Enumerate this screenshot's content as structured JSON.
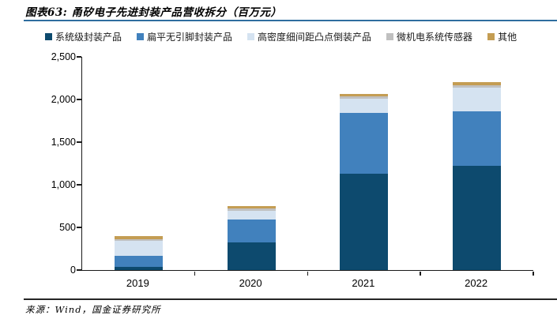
{
  "header": {
    "title": "图表63: 甬矽电子先进封装产品营收拆分（百万元）"
  },
  "footer": {
    "source": "来源：Wind，国金证券研究所"
  },
  "colors": {
    "title_rule": "#2F6E9F",
    "bottom_rule": "#262626",
    "axis": "#1a1a1a"
  },
  "chart_data": {
    "type": "bar",
    "stacked": true,
    "title": "甬矽电子先进封装产品营收拆分（百万元）",
    "unit": "百万元",
    "categories": [
      "2019",
      "2020",
      "2021",
      "2022"
    ],
    "series": [
      {
        "name": "系统级封装产品",
        "color": "#0D4A6E",
        "values": [
          35,
          325,
          1130,
          1220
        ]
      },
      {
        "name": "扁平无引脚封装产品",
        "color": "#4181BD",
        "values": [
          130,
          270,
          715,
          640
        ]
      },
      {
        "name": "高密度细间距凸点倒装产品",
        "color": "#D5E3F1",
        "values": [
          175,
          100,
          165,
          280
        ]
      },
      {
        "name": "微机电系统传感器",
        "color": "#C0C0C0",
        "values": [
          25,
          25,
          25,
          25
        ]
      },
      {
        "name": "其他",
        "color": "#C49D53",
        "values": [
          35,
          30,
          30,
          35
        ]
      }
    ],
    "totals": [
      400,
      750,
      2065,
      2200
    ],
    "ylim": [
      0,
      2500
    ],
    "yticks": [
      {
        "value": 0,
        "label": "0"
      },
      {
        "value": 500,
        "label": "500"
      },
      {
        "value": 1000,
        "label": "1,000"
      },
      {
        "value": 1500,
        "label": "1,500"
      },
      {
        "value": 2000,
        "label": "2,000"
      },
      {
        "value": 2500,
        "label": "2,500"
      }
    ],
    "grid": false,
    "legend_position": "top"
  }
}
